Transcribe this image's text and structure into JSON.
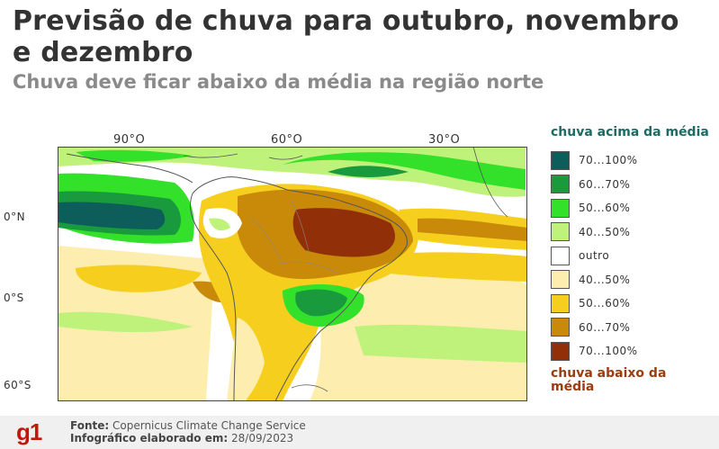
{
  "header": {
    "title": "Previsão de chuva para outubro, novembro e dezembro",
    "subtitle": "Chuva deve ficar abaixo da média na região norte"
  },
  "map": {
    "longitude_labels": [
      "90°O",
      "60°O",
      "30°O"
    ],
    "latitude_labels": [
      "0°N",
      "0°S",
      "60°S"
    ]
  },
  "legend": {
    "above_heading": "chuva acima da média",
    "below_heading": "chuva abaixo da média",
    "items": [
      {
        "label": "70...100%",
        "color": "#0d5e5a"
      },
      {
        "label": "60...70%",
        "color": "#199a3c"
      },
      {
        "label": "50...60%",
        "color": "#33e02a"
      },
      {
        "label": "40...50%",
        "color": "#bff27a"
      },
      {
        "label": "outro",
        "color": "#ffffff"
      },
      {
        "label": "40...50%",
        "color": "#fdeeb0"
      },
      {
        "label": "50...60%",
        "color": "#f6cf1e"
      },
      {
        "label": "60...70%",
        "color": "#c98a0a"
      },
      {
        "label": "70...100%",
        "color": "#913008"
      }
    ]
  },
  "footer": {
    "logo": "g1",
    "source_label": "Fonte:",
    "source_value": "Copernicus Climate Change Service",
    "credit_label": "Infográfico elaborado em:",
    "credit_value": "28/09/2023"
  }
}
